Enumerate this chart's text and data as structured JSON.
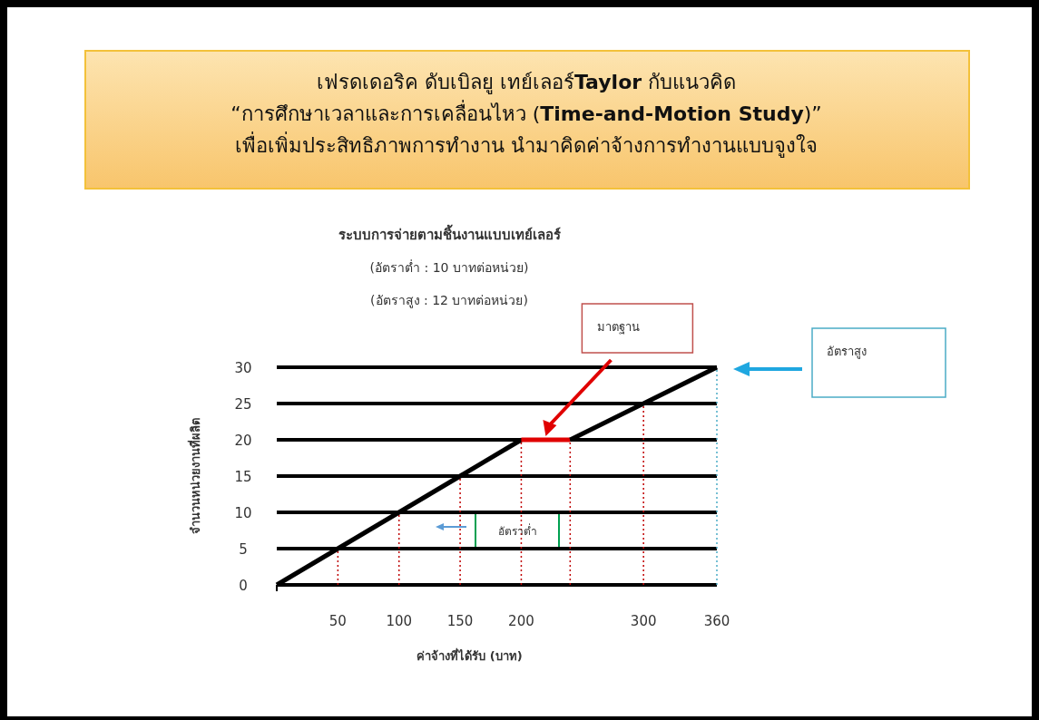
{
  "chart_data": {
    "type": "line",
    "title": "เฟรดเดอริค ดับเบิลยู เทย์เลอร์Taylor กับแนวคิด\n“การศึกษาเวลาและการเคลื่อนไหว (Time-and-Motion Study)”\nเพื่อเพิ่มประสิทธิภาพการทำงาน นำมาคิดค่าจ้างการทำงานแบบจูงใจ",
    "subtitle": "ระบบการจ่ายตามชิ้นงานแบบเทย์เลอร์\n(อัตราต่ำ : 10 บาทต่อหน่วย)\n(อัตราสูง : 12 บาทต่อหน่วย)",
    "xlabel": "ค่าจ้างที่ได้รับ (บาท)",
    "ylabel": "จำนวนหน่วยงานที่ผลิต",
    "xlim": [
      0,
      360
    ],
    "ylim": [
      0,
      30
    ],
    "xticks": [
      {
        "value": 0,
        "label": null
      },
      50,
      100,
      150,
      200,
      300,
      360
    ],
    "yticks": [
      0,
      5,
      10,
      15,
      20,
      25,
      30
    ],
    "grid": "y",
    "line_style": "solid",
    "series": [
      {
        "color": "#000000",
        "x": [
          0,
          50,
          100,
          150,
          200
        ],
        "values": [
          0,
          5,
          10,
          15,
          20
        ]
      },
      {
        "color": "#e00000",
        "x": [
          200,
          240
        ],
        "values": [
          20,
          20
        ]
      },
      {
        "color": "#000000",
        "x": [
          240,
          300,
          360
        ],
        "values": [
          20,
          25,
          30
        ]
      }
    ],
    "ref_lines": [
      {
        "axis": "x",
        "value": 50,
        "color": "#c00000",
        "line_style": "dotted"
      },
      {
        "axis": "x",
        "value": 100,
        "color": "#c00000",
        "line_style": "dotted"
      },
      {
        "axis": "x",
        "value": 150,
        "color": "#c00000",
        "line_style": "dotted"
      },
      {
        "axis": "x",
        "value": 200,
        "color": "#c00000",
        "line_style": "dotted"
      },
      {
        "axis": "x",
        "value": 240,
        "color": "#c00000",
        "line_style": "dotted"
      },
      {
        "axis": "x",
        "value": 300,
        "color": "#c00000",
        "line_style": "dotted"
      },
      {
        "axis": "x",
        "value": 360,
        "color": "#4bacc6",
        "line_style": "dotted"
      }
    ],
    "annotations": [
      "มาตฐาน",
      "อัตราสูง",
      "อัตราต่ำ"
    ]
  }
}
